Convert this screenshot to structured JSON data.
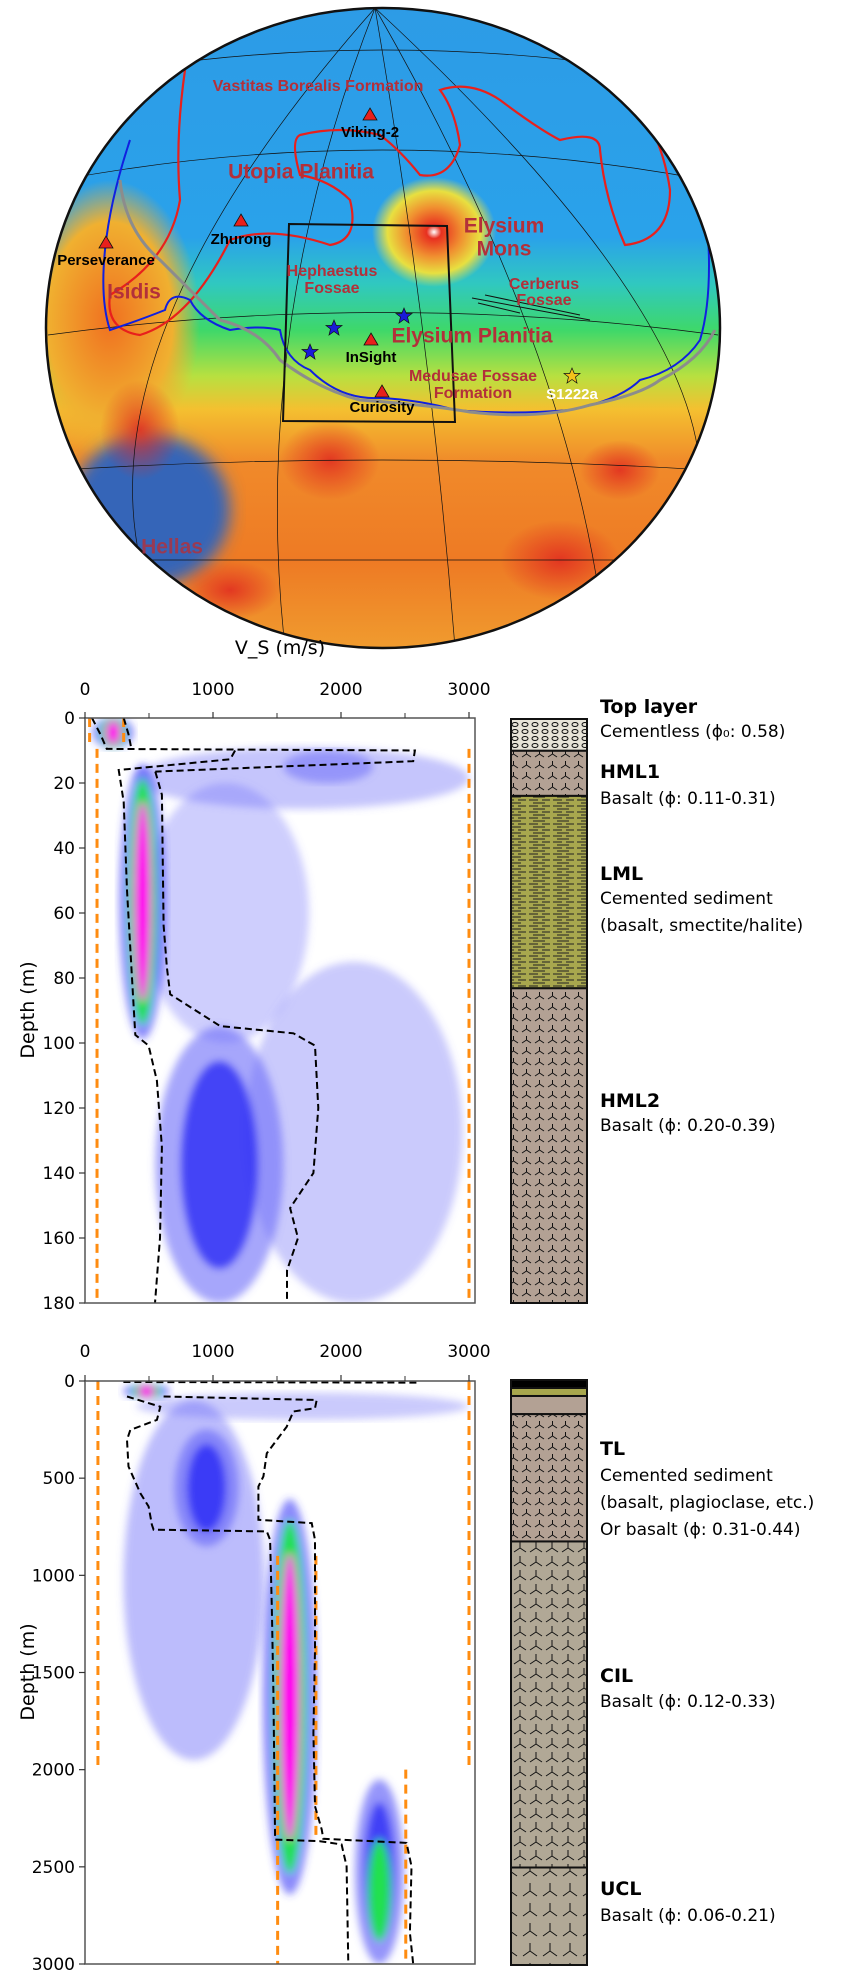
{
  "map": {
    "regions": [
      "Vastitas Borealis Formation",
      "Utopia Planitia",
      "Isidis",
      "Elysium",
      "Mons",
      "Hephaestus",
      "Fossae",
      "Cerberus",
      "Fossae",
      "Elysium Planitia",
      "Medusae Fossae",
      "Formation",
      "Hellas"
    ],
    "sites": [
      "Viking-2",
      "Zhurong",
      "Perseverance",
      "InSight",
      "Curiosity",
      "S1222a"
    ],
    "colors": {
      "landing_site": "#e8201c",
      "event_star": "#1a1ad8",
      "s1222a_star": "#f5c21a",
      "region_text": "#b3303a",
      "dichotomy_boundary": "#8c8c8c",
      "unit_boundary_red": "#e8201c",
      "unit_boundary_blue": "#1020e0"
    }
  },
  "chart_data": [
    {
      "type": "heatmap",
      "xlabel": "V_S (m/s)",
      "ylabel": "Depth (m)",
      "xlim": [
        0,
        3000
      ],
      "ylim": [
        180,
        0
      ],
      "xticks": [
        0,
        1000,
        2000,
        3000
      ],
      "xminor": [
        500,
        1500,
        2500
      ],
      "yticks": [
        0,
        20,
        40,
        60,
        80,
        100,
        120,
        140,
        160,
        180
      ],
      "density_features": [
        {
          "vs": 1700,
          "vs_width": 2600,
          "depth_top": 9,
          "depth_bottom": 28,
          "level": 0.25
        },
        {
          "vs": 1900,
          "vs_width": 700,
          "depth_top": 10,
          "depth_bottom": 20,
          "level": 0.5
        },
        {
          "vs": 1100,
          "vs_width": 1300,
          "depth_top": 20,
          "depth_bottom": 100,
          "level": 0.15
        },
        {
          "vs": 2100,
          "vs_width": 1700,
          "depth_top": 75,
          "depth_bottom": 180,
          "level": 0.2
        },
        {
          "vs": 1050,
          "vs_width": 1000,
          "depth_top": 95,
          "depth_bottom": 180,
          "level": 0.6
        },
        {
          "vs": 450,
          "vs_width": 260,
          "depth_top": 18,
          "depth_bottom": 95,
          "level": 1.0
        },
        {
          "vs": 220,
          "vs_width": 230,
          "depth_top": 0,
          "depth_bottom": 9,
          "level": 1.0
        }
      ],
      "bounds": [
        {
          "vs": [
            55,
            120,
            170,
            2577,
            2564,
            549
          ],
          "depth": [
            0,
            5,
            9.5,
            10,
            13.3,
            16.5
          ]
        },
        {
          "vs": [
            302,
            340,
            360
          ],
          "depth": [
            0,
            5,
            9
          ]
        },
        {
          "vs": [
            1173,
            1134,
            263,
            302,
            328,
            367,
            393,
            497,
            562,
            601,
            586,
            547
          ],
          "depth": [
            10,
            12.7,
            16,
            25.8,
            53,
            80,
            97.5,
            100.8,
            111.6,
            132,
            160,
            180
          ]
        },
        {
          "vs": [
            549,
            601,
            614,
            640,
            666,
            1056,
            1628,
            1797,
            1823,
            1784,
            1602,
            1664,
            1578,
            1578
          ],
          "depth": [
            16.5,
            23.6,
            63.8,
            76.8,
            85,
            94.8,
            97,
            100.8,
            120,
            140,
            150.8,
            160,
            170,
            180
          ]
        }
      ],
      "priors": [
        {
          "vs": 36,
          "depth": [
            0,
            9
          ]
        },
        {
          "vs": 302,
          "depth": [
            0,
            9
          ]
        },
        {
          "vs": 94,
          "depth": [
            9.5,
            180
          ]
        },
        {
          "vs": 3000,
          "depth": [
            9.5,
            180
          ]
        }
      ]
    },
    {
      "type": "heatmap",
      "xlabel": "",
      "ylabel": "Depth (m)",
      "xlim": [
        0,
        3000
      ],
      "ylim": [
        3000,
        0
      ],
      "xticks": [
        0,
        1000,
        2000,
        3000
      ],
      "xminor": [
        500,
        1500,
        2500
      ],
      "yticks": [
        0,
        500,
        1000,
        1500,
        2000,
        2500,
        3000
      ],
      "density_features": [
        {
          "vs": 1700,
          "vs_width": 2600,
          "depth_top": 60,
          "depth_bottom": 200,
          "level": 0.2
        },
        {
          "vs": 850,
          "vs_width": 1100,
          "depth_top": 100,
          "depth_bottom": 1950,
          "level": 0.35
        },
        {
          "vs": 950,
          "vs_width": 500,
          "depth_top": 250,
          "depth_bottom": 850,
          "level": 0.75
        },
        {
          "vs": 1600,
          "vs_width": 300,
          "depth_top": 700,
          "depth_bottom": 2550,
          "level": 1.0
        },
        {
          "vs": 2300,
          "vs_width": 380,
          "depth_top": 2050,
          "depth_bottom": 3000,
          "level": 0.8
        },
        {
          "vs": 480,
          "vs_width": 260,
          "depth_top": 15,
          "depth_bottom": 90,
          "level": 1.0
        }
      ],
      "bounds": [
        {
          "vs": [
            328,
            588,
            562,
            354,
            328,
            340,
            432,
            497,
            523,
            536,
            1420,
            1446,
            1459,
            1472,
            1485,
            1836,
            2005,
            2044,
            2057
          ],
          "depth": [
            80,
            132,
            200,
            252,
            303,
            440,
            577,
            646,
            740,
            765,
            774,
            817,
            1160,
            1600,
            2360,
            2368,
            2385,
            2497,
            3000
          ]
        },
        {
          "vs": [
            300,
            2590
          ],
          "depth": [
            5,
            8
          ]
        },
        {
          "vs": [
            614,
            1810,
            1797,
            1628,
            1576,
            1420,
            1394,
            1355,
            1355,
            1771,
            1797,
            1797,
            1784,
            1797,
            1849,
            1862,
            2512,
            2551,
            2538,
            2564
          ],
          "depth": [
            80,
            98,
            140,
            157,
            235,
            372,
            491,
            543,
            714,
            731,
            817,
            1382,
            1812,
            2188,
            2308,
            2356,
            2377,
            2497,
            2840,
            3000
          ]
        }
      ],
      "priors": [
        {
          "vs": 101,
          "depth": [
            0,
            2000
          ]
        },
        {
          "vs": 3000,
          "depth": [
            0,
            2000
          ]
        },
        {
          "vs": 1505,
          "depth": [
            900,
            3000
          ]
        },
        {
          "vs": 1804,
          "depth": [
            900,
            2350
          ]
        },
        {
          "vs": 2506,
          "depth": [
            2000,
            3000
          ]
        }
      ]
    }
  ],
  "lithology": {
    "upper": [
      {
        "name": "Top layer",
        "description": [
          "Cementless (ϕ₀: 0.58)"
        ],
        "depth": [
          0,
          9.8
        ],
        "pattern": "cementless"
      },
      {
        "name": "HML1",
        "description": [
          "Basalt (ϕ: 0.11-0.31)"
        ],
        "depth": [
          9.8,
          23.7
        ],
        "pattern": "basalt"
      },
      {
        "name": "LML",
        "description": [
          "Cemented sediment",
          "(basalt, smectite/halite)"
        ],
        "depth": [
          23.7,
          83
        ],
        "pattern": "sediment"
      },
      {
        "name": "HML2",
        "description": [
          "Basalt (ϕ: 0.20-0.39)"
        ],
        "depth": [
          83,
          180
        ],
        "pattern": "basalt"
      }
    ],
    "lower": [
      {
        "name": "",
        "description": [],
        "depth": [
          0,
          41
        ],
        "pattern": "black"
      },
      {
        "name": "",
        "description": [],
        "depth": [
          41,
          82
        ],
        "pattern": "olive"
      },
      {
        "name": "",
        "description": [],
        "depth": [
          82,
          175
        ],
        "pattern": "brown"
      },
      {
        "name": "TL",
        "description": [
          "Cemented sediment",
          "(basalt, plagioclase, etc.)",
          "Or basalt (ϕ: 0.31-0.44)"
        ],
        "depth": [
          175,
          828
        ],
        "pattern": "basalt-dense"
      },
      {
        "name": "CIL",
        "description": [
          "Basalt (ϕ: 0.12-0.33)"
        ],
        "depth": [
          828,
          2500
        ],
        "pattern": "basalt-gray"
      },
      {
        "name": "UCL",
        "description": [
          "Basalt (ϕ: 0.06-0.21)"
        ],
        "depth": [
          2500,
          3000
        ],
        "pattern": "basalt-gray-large"
      }
    ],
    "colors": {
      "basalt": "#b3a194",
      "basalt_gray": "#b1a896",
      "sediment": "#a8a74e",
      "cementless": "#e8e4d8"
    }
  }
}
